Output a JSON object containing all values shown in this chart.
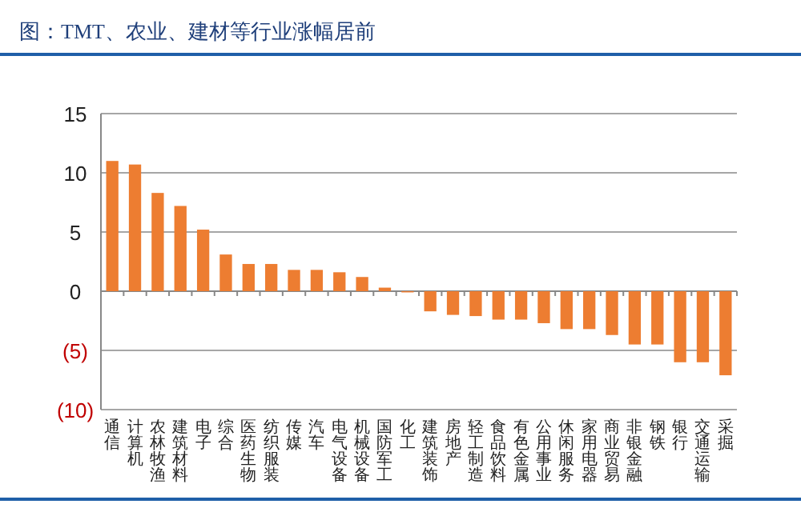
{
  "chart_data": {
    "type": "bar",
    "title": "图：TMT、农业、建材等行业涨幅居前",
    "categories": [
      "通信",
      "计算机",
      "农林牧渔",
      "建筑材料",
      "电子",
      "综合",
      "医药生物",
      "纺织服装",
      "传媒",
      "汽车",
      "电气设备",
      "机械设备",
      "国防军工",
      "化工",
      "建筑装饰",
      "房地产",
      "轻工制造",
      "食品饮料",
      "有色金属",
      "公用事业",
      "休闲服务",
      "家用电器",
      "商业贸易",
      "非银金融",
      "钢铁",
      "银行",
      "交通运输",
      "采掘"
    ],
    "values": [
      11.0,
      10.7,
      8.3,
      7.2,
      5.2,
      3.1,
      2.3,
      2.3,
      1.8,
      1.8,
      1.6,
      1.2,
      0.3,
      -0.1,
      -1.7,
      -2.0,
      -2.1,
      -2.4,
      -2.4,
      -2.7,
      -3.2,
      -3.2,
      -3.7,
      -4.5,
      -4.5,
      -6.0,
      -6.0,
      -7.1
    ],
    "color": "#ed7d31",
    "ylim": [
      -10,
      15
    ],
    "yticks": [
      15,
      10,
      5,
      0,
      {
        "value": -5,
        "label": "(5)"
      },
      {
        "value": -10,
        "label": "(10)"
      }
    ],
    "grid": "y"
  }
}
